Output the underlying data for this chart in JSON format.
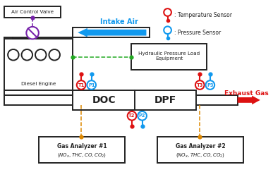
{
  "bg_color": "#ffffff",
  "legend_temp_sensor": ": Temperature Sensor",
  "legend_press_sensor": ": Pressure Sensor",
  "air_control_valve_label": "Air Control Valve",
  "intake_air_label": "Intake Air",
  "hydraulic_label": "Hydraulic Pressure Load\nEquipment",
  "diesel_engine_label": "Diesel Engine",
  "doc_label": "DOC",
  "dpf_label": "DPF",
  "exhaust_label": "Exhaust Gas",
  "gas1_label": "Gas Analyzer #1",
  "gas1_sub": "$(NO_x, THC, CO, CO_2)$",
  "gas2_label": "Gas Analyzer #2",
  "gas2_sub": "$(NO_x, THC, CO, CO_2)$",
  "color_red": "#dd1111",
  "color_blue": "#1199ee",
  "color_purple": "#7722aa",
  "color_green": "#22aa22",
  "color_orange": "#dd8800",
  "color_black": "#222222"
}
